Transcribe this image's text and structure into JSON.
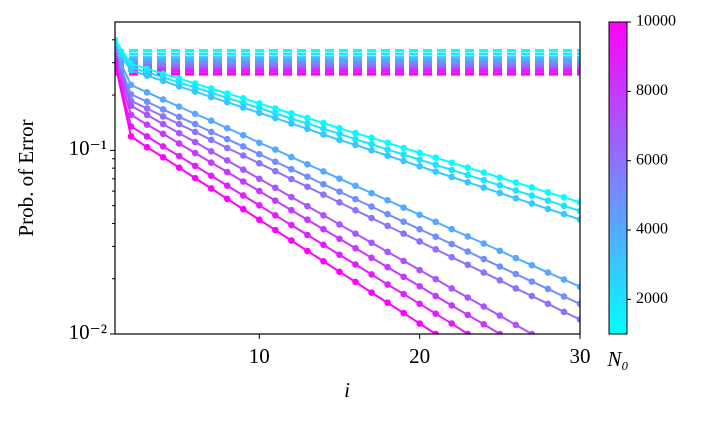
{
  "chart_data": {
    "type": "line",
    "ylabel": "Prob. of Error",
    "xlabel": "i",
    "log_y": true,
    "xlim": [
      1,
      30
    ],
    "xticks": [
      10,
      20,
      30
    ],
    "ylim": [
      0.01,
      0.5
    ],
    "yticks": [
      {
        "value": 0.1,
        "label": "10⁻¹"
      },
      {
        "value": 0.01,
        "label": "10⁻²"
      }
    ],
    "yminorticks": [
      0.02,
      0.03,
      0.04,
      0.05,
      0.06,
      0.07,
      0.08,
      0.09,
      0.2,
      0.3,
      0.4
    ],
    "x": [
      1,
      2,
      3,
      4,
      5,
      6,
      7,
      8,
      9,
      10,
      11,
      12,
      13,
      14,
      15,
      16,
      17,
      18,
      19,
      20,
      21,
      22,
      23,
      24,
      25,
      26,
      27,
      28,
      29,
      30
    ],
    "series": [
      {
        "color": "#00ffff",
        "asymptote": 0.35,
        "values": [
          0.4,
          0.296,
          0.278,
          0.261,
          0.246,
          0.231,
          0.217,
          0.204,
          0.192,
          0.18,
          0.169,
          0.159,
          0.15,
          0.141,
          0.132,
          0.124,
          0.117,
          0.11,
          0.103,
          0.097,
          0.0912,
          0.0857,
          0.0805,
          0.0757,
          0.0711,
          0.0668,
          0.0628,
          0.059,
          0.0555,
          0.0521
        ]
      },
      {
        "color": "#1ce3ff",
        "asymptote": 0.335,
        "values": [
          0.38,
          0.284,
          0.266,
          0.25,
          0.234,
          0.22,
          0.206,
          0.193,
          0.181,
          0.17,
          0.159,
          0.149,
          0.14,
          0.131,
          0.123,
          0.115,
          0.108,
          0.101,
          0.0949,
          0.089,
          0.0834,
          0.0782,
          0.0734,
          0.0688,
          0.0645,
          0.0605,
          0.0567,
          0.0532,
          0.0499,
          0.0468
        ]
      },
      {
        "color": "#38c7ff",
        "asymptote": 0.32,
        "values": [
          0.36,
          0.273,
          0.255,
          0.239,
          0.223,
          0.209,
          0.195,
          0.183,
          0.171,
          0.16,
          0.15,
          0.14,
          0.131,
          0.122,
          0.114,
          0.107,
          0.1,
          0.0936,
          0.0876,
          0.0819,
          0.0766,
          0.0716,
          0.067,
          0.0627,
          0.0586,
          0.0548,
          0.0513,
          0.048,
          0.0449,
          0.042
        ]
      },
      {
        "color": "#55aaff",
        "asymptote": 0.31,
        "values": [
          0.35,
          0.227,
          0.207,
          0.189,
          0.173,
          0.158,
          0.145,
          0.132,
          0.121,
          0.11,
          0.101,
          0.092,
          0.084,
          0.0768,
          0.0701,
          0.0641,
          0.0585,
          0.0535,
          0.0488,
          0.0446,
          0.0408,
          0.0372,
          0.034,
          0.0311,
          0.0284,
          0.0259,
          0.0237,
          0.0216,
          0.0198,
          0.0181
        ]
      },
      {
        "color": "#718eff",
        "asymptote": 0.3,
        "values": [
          0.34,
          0.202,
          0.184,
          0.167,
          0.152,
          0.139,
          0.126,
          0.115,
          0.105,
          0.0953,
          0.0867,
          0.079,
          0.0719,
          0.0654,
          0.0596,
          0.0542,
          0.0494,
          0.0449,
          0.0409,
          0.0372,
          0.0339,
          0.0309,
          0.0281,
          0.0256,
          0.0233,
          0.0212,
          0.0193,
          0.0176,
          0.016,
          0.0146
        ]
      },
      {
        "color": "#8e71ff",
        "asymptote": 0.29,
        "values": [
          0.33,
          0.186,
          0.169,
          0.153,
          0.139,
          0.126,
          0.114,
          0.103,
          0.0937,
          0.085,
          0.077,
          0.0698,
          0.0633,
          0.0574,
          0.0521,
          0.0472,
          0.0428,
          0.0388,
          0.0352,
          0.0319,
          0.0289,
          0.0262,
          0.0238,
          0.0216,
          0.0196,
          0.0177,
          0.0161,
          0.0146,
          0.0132,
          0.012
        ]
      },
      {
        "color": "#aa55ff",
        "asymptote": 0.28,
        "values": [
          0.32,
          0.175,
          0.156,
          0.139,
          0.124,
          0.111,
          0.0988,
          0.0881,
          0.0785,
          0.07,
          0.0625,
          0.0557,
          0.0497,
          0.0443,
          0.0395,
          0.0352,
          0.0314,
          0.028,
          0.025,
          0.0223,
          0.0199,
          0.0177,
          0.0158,
          0.0141,
          0.0126,
          0.0112,
          0.01,
          null,
          null,
          null
        ]
      },
      {
        "color": "#c738ff",
        "asymptote": 0.275,
        "values": [
          0.31,
          0.156,
          0.138,
          0.123,
          0.109,
          0.0967,
          0.0858,
          0.0762,
          0.0676,
          0.06,
          0.0532,
          0.0472,
          0.0419,
          0.0372,
          0.033,
          0.0293,
          0.026,
          0.0231,
          0.0205,
          0.0182,
          0.0161,
          0.0143,
          0.0127,
          0.0113,
          0.01,
          null,
          null,
          null,
          null,
          null
        ]
      },
      {
        "color": "#e31cff",
        "asymptote": 0.27,
        "values": [
          0.3,
          0.135,
          0.119,
          0.105,
          0.0931,
          0.0823,
          0.0727,
          0.0642,
          0.0568,
          0.0502,
          0.0443,
          0.0392,
          0.0346,
          0.0306,
          0.027,
          0.0239,
          0.0211,
          0.0186,
          0.0165,
          0.0146,
          0.0129,
          0.0114,
          0.01,
          null,
          null,
          null,
          null,
          null,
          null,
          null
        ]
      },
      {
        "color": "#ff00ff",
        "asymptote": 0.26,
        "values": [
          0.3,
          0.119,
          0.104,
          0.0917,
          0.0805,
          0.0706,
          0.062,
          0.0544,
          0.0478,
          0.0419,
          0.0368,
          0.0323,
          0.0283,
          0.0249,
          0.0218,
          0.0192,
          0.0168,
          0.0148,
          0.013,
          0.0114,
          0.01,
          null,
          null,
          null,
          null,
          null,
          null,
          null,
          null,
          null
        ]
      }
    ],
    "colorbar": {
      "label": "N₀",
      "lim": [
        1000,
        10000
      ],
      "ticks": [
        2000,
        4000,
        6000,
        8000,
        10000
      ],
      "cmap": [
        "#00ffff",
        "#ff00ff"
      ]
    }
  }
}
